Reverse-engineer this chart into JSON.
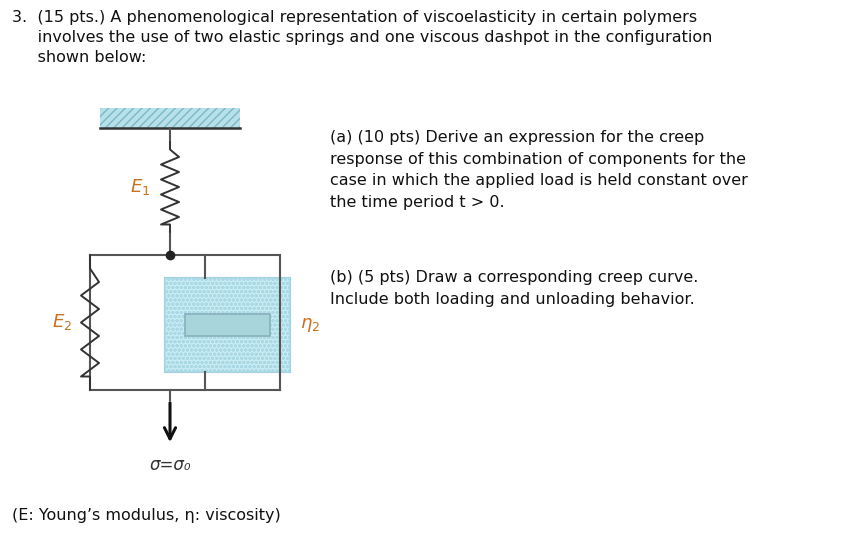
{
  "bg_color": "#ffffff",
  "label_color": "#c87020",
  "line_color": "#555555",
  "wall_hatch_facecolor": "#b8e0e8",
  "wall_hatch_edgecolor": "#7ab8c8",
  "dashpot_facecolor": "#c8e8f0",
  "dashpot_edgecolor": "#88b8c8",
  "piston_facecolor": "#a8d4dc",
  "piston_edgecolor": "#88b0bc",
  "title_line1": "3.  (15 pts.) A phenomenological representation of viscoelasticity in certain polymers",
  "title_line2": "     involves the use of two elastic springs and one viscous dashpot in the configuration",
  "title_line3": "     shown below:",
  "part_a": "(a) (10 pts) Derive an expression for the creep\nresponse of this combination of components for the\ncase in which the applied load is held constant over\nthe time period t > 0.",
  "part_b": "(b) (5 pts) Draw a corresponding creep curve.\nInclude both loading and unloading behavior.",
  "footer": "(E: Young’s modulus, η: viscosity)",
  "sigma_label": "σ=σ₀",
  "font_size_title": 11.5,
  "font_size_body": 11.5,
  "font_size_label": 13,
  "font_size_footer": 11.5
}
